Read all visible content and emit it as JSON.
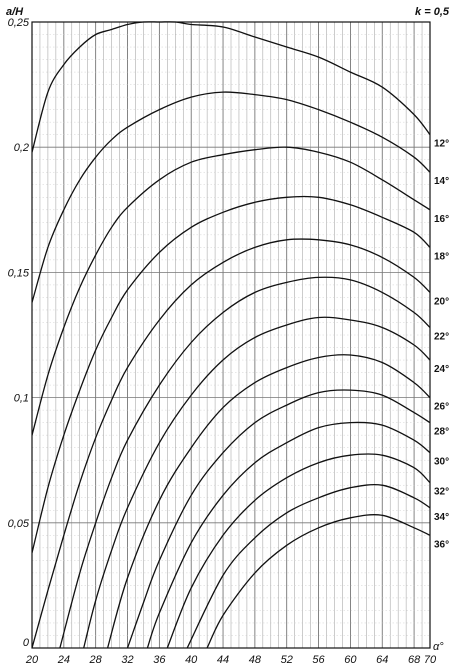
{
  "chart_data": {
    "type": "line",
    "ylabel": "a/H",
    "xlabel": "α°",
    "parameter": "k = 0,5",
    "xlim": [
      20,
      70
    ],
    "ylim": [
      0,
      0.25
    ],
    "grid": true,
    "x_ticks": [
      20,
      24,
      28,
      32,
      36,
      40,
      44,
      48,
      52,
      56,
      60,
      64,
      68,
      70
    ],
    "x_tick_labels": [
      "20",
      "24",
      "28",
      "32",
      "36",
      "40",
      "44",
      "48",
      "52",
      "56",
      "60",
      "64",
      "68",
      "70"
    ],
    "y_ticks": [
      0,
      0.05,
      0.1,
      0.15,
      0.2,
      0.25
    ],
    "y_tick_labels": [
      "0",
      "0,05",
      "0,1",
      "0,15",
      "0,2",
      "0,25"
    ],
    "series": [
      {
        "name": "12°",
        "x": [
          20,
          22,
          24,
          26,
          28,
          30,
          32,
          34,
          36,
          38,
          40,
          44,
          48,
          52,
          56,
          60,
          64,
          68,
          70
        ],
        "y": [
          0.198,
          0.222,
          0.233,
          0.24,
          0.245,
          0.247,
          0.249,
          0.25,
          0.25,
          0.25,
          0.249,
          0.248,
          0.244,
          0.24,
          0.236,
          0.23,
          0.224,
          0.213,
          0.205
        ]
      },
      {
        "name": "14°",
        "x": [
          20,
          22,
          24,
          26,
          28,
          30,
          32,
          36,
          40,
          44,
          48,
          52,
          56,
          60,
          64,
          68,
          70
        ],
        "y": [
          0.138,
          0.16,
          0.175,
          0.187,
          0.196,
          0.203,
          0.208,
          0.215,
          0.22,
          0.222,
          0.221,
          0.219,
          0.215,
          0.21,
          0.204,
          0.196,
          0.19
        ]
      },
      {
        "name": "16°",
        "x": [
          20,
          22,
          24,
          26,
          28,
          30,
          32,
          36,
          40,
          44,
          48,
          52,
          56,
          60,
          64,
          68,
          70
        ],
        "y": [
          0.085,
          0.109,
          0.128,
          0.144,
          0.157,
          0.168,
          0.176,
          0.187,
          0.194,
          0.197,
          0.199,
          0.2,
          0.198,
          0.194,
          0.187,
          0.179,
          0.175
        ]
      },
      {
        "name": "18°",
        "x": [
          20,
          22,
          24,
          26,
          28,
          30,
          32,
          36,
          40,
          44,
          48,
          52,
          56,
          60,
          64,
          68,
          70
        ],
        "y": [
          0.038,
          0.064,
          0.085,
          0.103,
          0.119,
          0.132,
          0.143,
          0.158,
          0.168,
          0.174,
          0.178,
          0.18,
          0.18,
          0.177,
          0.172,
          0.166,
          0.16
        ]
      },
      {
        "name": "20°",
        "x": [
          20,
          22,
          24,
          26,
          28,
          30,
          32,
          36,
          40,
          44,
          48,
          52,
          56,
          60,
          64,
          68,
          70
        ],
        "y": [
          0.0,
          0.023,
          0.045,
          0.066,
          0.084,
          0.099,
          0.112,
          0.131,
          0.145,
          0.154,
          0.16,
          0.163,
          0.163,
          0.161,
          0.156,
          0.148,
          0.142
        ]
      },
      {
        "name": "22°",
        "x": [
          23.5,
          26,
          28,
          30,
          32,
          36,
          40,
          44,
          48,
          52,
          56,
          60,
          64,
          68,
          70
        ],
        "y": [
          0.0,
          0.03,
          0.05,
          0.068,
          0.083,
          0.105,
          0.122,
          0.134,
          0.142,
          0.146,
          0.148,
          0.147,
          0.142,
          0.134,
          0.128
        ]
      },
      {
        "name": "24°",
        "x": [
          26.5,
          28,
          30,
          32,
          36,
          40,
          44,
          48,
          52,
          56,
          60,
          64,
          68,
          70
        ],
        "y": [
          0.0,
          0.019,
          0.039,
          0.056,
          0.082,
          0.101,
          0.115,
          0.124,
          0.129,
          0.132,
          0.131,
          0.128,
          0.121,
          0.115
        ]
      },
      {
        "name": "26°",
        "x": [
          29.5,
          32,
          36,
          40,
          44,
          48,
          52,
          56,
          60,
          64,
          68,
          70
        ],
        "y": [
          0.0,
          0.028,
          0.059,
          0.08,
          0.096,
          0.106,
          0.112,
          0.116,
          0.117,
          0.114,
          0.106,
          0.1
        ]
      },
      {
        "name": "28°",
        "x": [
          32,
          34,
          36,
          40,
          44,
          48,
          52,
          56,
          60,
          64,
          68,
          70
        ],
        "y": [
          0.0,
          0.018,
          0.035,
          0.061,
          0.078,
          0.09,
          0.097,
          0.102,
          0.103,
          0.101,
          0.094,
          0.09
        ]
      },
      {
        "name": "30°",
        "x": [
          34.5,
          36,
          40,
          44,
          48,
          52,
          56,
          60,
          64,
          68,
          70
        ],
        "y": [
          0.0,
          0.014,
          0.042,
          0.061,
          0.074,
          0.082,
          0.088,
          0.09,
          0.089,
          0.083,
          0.078
        ]
      },
      {
        "name": "32°",
        "x": [
          37,
          40,
          44,
          48,
          52,
          56,
          60,
          64,
          68,
          70
        ],
        "y": [
          0.0,
          0.024,
          0.045,
          0.059,
          0.068,
          0.074,
          0.077,
          0.077,
          0.072,
          0.066
        ]
      },
      {
        "name": "34°",
        "x": [
          39.5,
          44,
          48,
          52,
          56,
          60,
          64,
          68,
          70
        ],
        "y": [
          0.0,
          0.029,
          0.044,
          0.054,
          0.06,
          0.064,
          0.065,
          0.06,
          0.056
        ]
      },
      {
        "name": "36°",
        "x": [
          42,
          44,
          48,
          52,
          56,
          60,
          64,
          68,
          70
        ],
        "y": [
          0.0,
          0.013,
          0.03,
          0.041,
          0.048,
          0.052,
          0.053,
          0.048,
          0.045
        ]
      }
    ]
  }
}
